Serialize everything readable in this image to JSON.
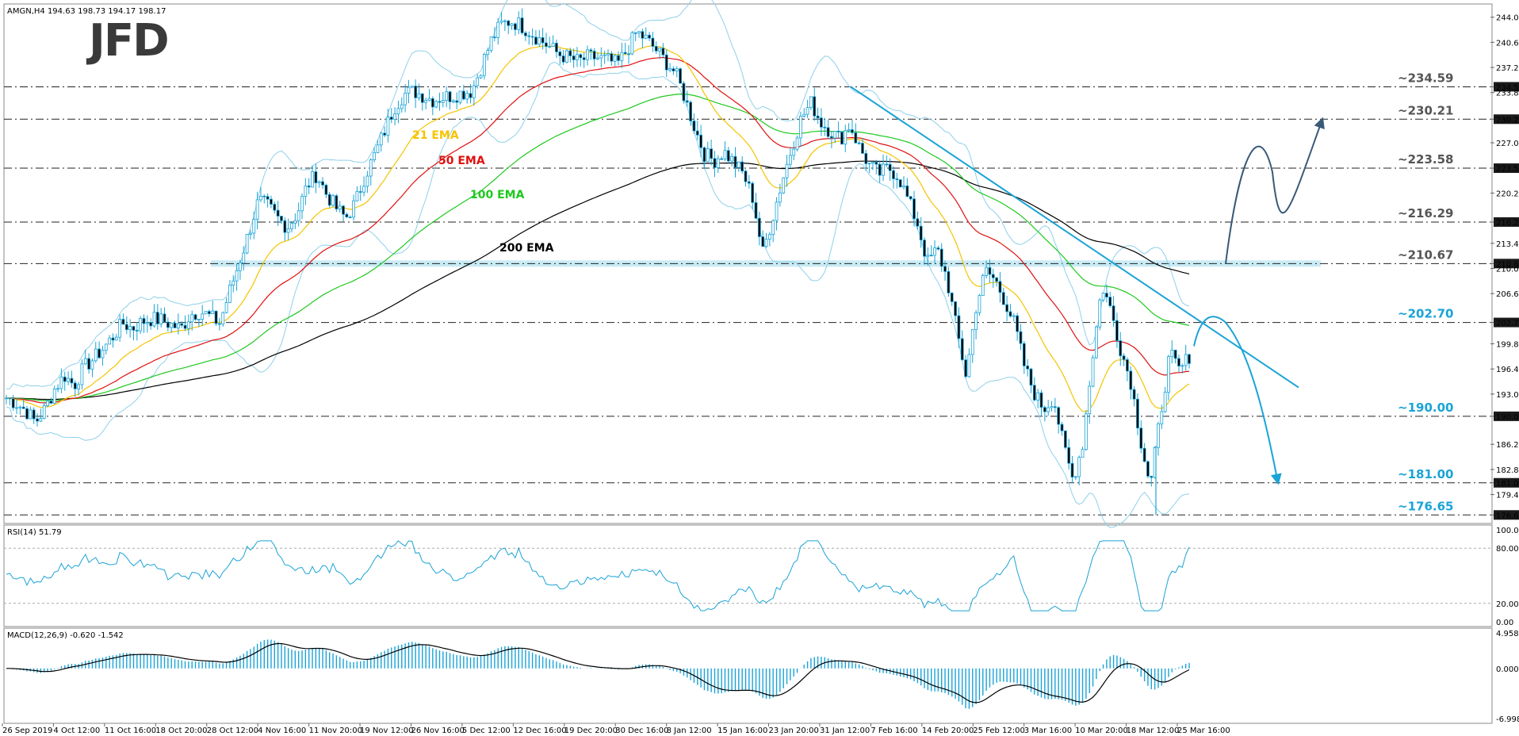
{
  "chart_data": {
    "type": "candlestick",
    "symbol_header": "AMGN,H4  194.63 198.73 194.17 198.17",
    "logo": "JFD",
    "price_axis": {
      "ylim": [
        175.5,
        245.8
      ],
      "ticks": [
        "244.01",
        "240.61",
        "237.21",
        "234.59",
        "233.81",
        "230.21",
        "227.01",
        "223.58",
        "220.21",
        "216.29",
        "213.41",
        "210.67",
        "210.01",
        "206.61",
        "202.70",
        "199.81",
        "196.41",
        "193.01",
        "190.00",
        "186.21",
        "182.81",
        "181.00",
        "179.41",
        "176.65"
      ],
      "tick_values": [
        244.01,
        240.61,
        237.21,
        234.59,
        233.81,
        230.21,
        227.01,
        223.58,
        220.21,
        216.29,
        213.41,
        210.67,
        210.01,
        206.61,
        202.7,
        199.81,
        196.41,
        193.01,
        190.0,
        186.21,
        182.81,
        181.0,
        179.41,
        176.65
      ],
      "highlighted": [
        "234.59",
        "230.21",
        "223.58",
        "216.29",
        "210.67",
        "202.70",
        "190.00",
        "181.00",
        "176.65"
      ]
    },
    "levels": [
      {
        "label": "~234.59",
        "value": 234.59,
        "color": "#555555"
      },
      {
        "label": "~230.21",
        "value": 230.21,
        "color": "#555555"
      },
      {
        "label": "~223.58",
        "value": 223.58,
        "color": "#555555"
      },
      {
        "label": "~216.29",
        "value": 216.29,
        "color": "#555555"
      },
      {
        "label": "~210.67",
        "value": 210.67,
        "color": "#555555"
      },
      {
        "label": "~202.70",
        "value": 202.7,
        "color": "#1aa3d6"
      },
      {
        "label": "~190.00",
        "value": 190.0,
        "color": "#1aa3d6"
      },
      {
        "label": "~181.00",
        "value": 181.0,
        "color": "#1aa3d6"
      },
      {
        "label": "~176.65",
        "value": 176.65,
        "color": "#1aa3d6"
      }
    ],
    "ema_labels": [
      {
        "label": "21 EMA",
        "color": "#f5c400"
      },
      {
        "label": "50 EMA",
        "color": "#e01010"
      },
      {
        "label": "100 EMA",
        "color": "#1ec81e"
      },
      {
        "label": "200 EMA",
        "color": "#000000"
      }
    ],
    "x_axis_labels": [
      "26 Sep 2019",
      "4 Oct 12:00",
      "11 Oct 16:00",
      "18 Oct 20:00",
      "28 Oct 12:00",
      "4 Nov 16:00",
      "11 Nov 20:00",
      "19 Nov 12:00",
      "26 Nov 16:00",
      "5 Dec 12:00",
      "12 Dec 16:00",
      "19 Dec 20:00",
      "30 Dec 16:00",
      "8 Jan 12:00",
      "15 Jan 16:00",
      "23 Jan 20:00",
      "31 Jan 12:00",
      "7 Feb 16:00",
      "14 Feb 20:00",
      "25 Feb 12:00",
      "3 Mar 16:00",
      "10 Mar 20:00",
      "18 Mar 12:00",
      "25 Mar 16:00"
    ],
    "rsi": {
      "label": "RSI(14) 51.79",
      "ylim": [
        0,
        100
      ],
      "ticks": [
        "100.00",
        "80.00",
        "20.00",
        "0.00"
      ],
      "tick_values": [
        100,
        80,
        20,
        0
      ],
      "levels": [
        80,
        20
      ]
    },
    "macd": {
      "label": "MACD(12,26,9) -0.620 -1.542",
      "ylim": [
        -6.998,
        4.958
      ],
      "ticks": [
        "4.958",
        "0.000",
        "-6.998"
      ],
      "tick_values": [
        4.958,
        0.0,
        -6.998
      ]
    },
    "colors": {
      "candle": "#1aa3d6",
      "bollinger": "#8fd0ea",
      "ema21": "#f5c400",
      "ema50": "#e01010",
      "ema100": "#1ec81e",
      "ema200": "#000000",
      "trendline": "#1aa3d6",
      "zone": "#bfe8f3",
      "scenario_up": "#3a5a78",
      "scenario_down": "#1aa3d6",
      "axis_highlight": "#1a1a1a"
    },
    "price_path": [
      192.5,
      191.8,
      190.8,
      189.2,
      191.0,
      193.8,
      195.5,
      194.2,
      196.6,
      197.8,
      199.2,
      200.8,
      202.6,
      201.9,
      202.8,
      203.2,
      203.0,
      202.4,
      201.8,
      203.8,
      204.2,
      203.5,
      202.6,
      206.8,
      210.8,
      214.8,
      219.2,
      218.4,
      216.8,
      215.6,
      217.5,
      221.2,
      222.8,
      220.1,
      218.2,
      216.8,
      218.9,
      222.6,
      225.4,
      228.6,
      231.8,
      233.6,
      234.0,
      233.4,
      232.8,
      233.2,
      233.4,
      233.8,
      234.0,
      237.4,
      240.8,
      243.0,
      243.5,
      243.0,
      242.0,
      241.0,
      240.0,
      239.0,
      238.5,
      238.0,
      238.6,
      238.5,
      238.2,
      237.6,
      239.5,
      242.0,
      241.0,
      239.6,
      238.0,
      236.5,
      233.0,
      229.0,
      225.5,
      224.6,
      225.8,
      224.4,
      222.8,
      219.5,
      212.0,
      216.8,
      221.8,
      226.3,
      230.4,
      232.4,
      229.8,
      228.6,
      227.5,
      229.5,
      226.3,
      224.0,
      222.8,
      223.6,
      222.5,
      219.3,
      216.0,
      210.8,
      212.6,
      208.7,
      201.8,
      195.4,
      204.8,
      209.7,
      208.4,
      205.6,
      202.4,
      196.8,
      193.2,
      191.0,
      192.6,
      186.2,
      181.4,
      186.2,
      197.8,
      207.8,
      204.0,
      198.8,
      194.6,
      186.8,
      180.4,
      190.0,
      198.4,
      196.1,
      198.2
    ]
  }
}
